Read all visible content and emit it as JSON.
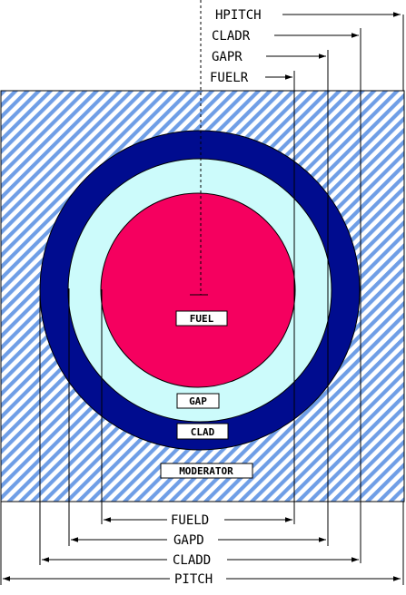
{
  "diagram": {
    "dimensions": {
      "hpitch": "HPITCH",
      "cladr": "CLADR",
      "gapr": "GAPR",
      "fuelr": "FUELR",
      "fueld": "FUELD",
      "gapd": "GAPD",
      "cladd": "CLADD",
      "pitch": "PITCH"
    },
    "regions": {
      "fuel": "FUEL",
      "gap": "GAP",
      "clad": "CLAD",
      "moderator": "MODERATOR"
    },
    "colors": {
      "moderator_hatch": "#6f9ee6",
      "clad": "#000c8f",
      "gap": "#ccfbfb",
      "fuel": "#f5005f",
      "line": "#000000"
    }
  }
}
